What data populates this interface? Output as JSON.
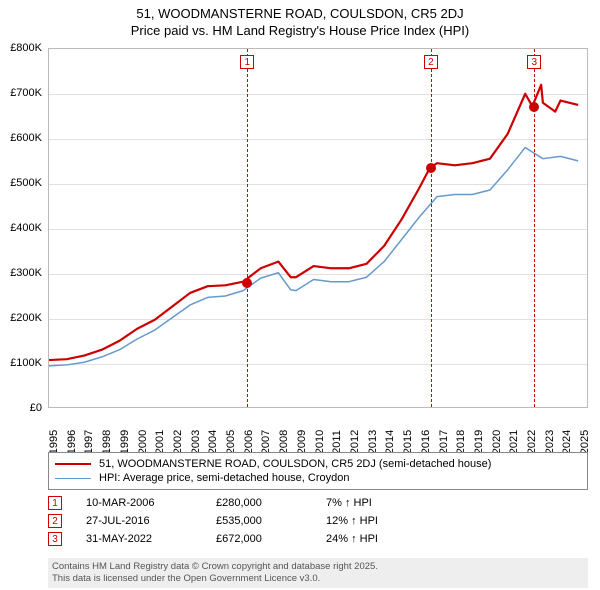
{
  "title": {
    "line1": "51, WOODMANSTERNE ROAD, COULSDON, CR5 2DJ",
    "line2": "Price paid vs. HM Land Registry's House Price Index (HPI)"
  },
  "chart": {
    "type": "line",
    "background_color": "#ffffff",
    "grid_color": "#e0e0e0",
    "border_color": "#bbbbbb",
    "ylim": [
      0,
      800000
    ],
    "ytick_step": 100000,
    "y_labels": [
      "£0",
      "£100K",
      "£200K",
      "£300K",
      "£400K",
      "£500K",
      "£600K",
      "£700K",
      "£800K"
    ],
    "xlim": [
      1995,
      2025.5
    ],
    "x_labels": [
      "1995",
      "1996",
      "1997",
      "1998",
      "1999",
      "2000",
      "2001",
      "2002",
      "2003",
      "2004",
      "2005",
      "2006",
      "2007",
      "2008",
      "2009",
      "2010",
      "2011",
      "2012",
      "2013",
      "2014",
      "2015",
      "2016",
      "2017",
      "2018",
      "2019",
      "2020",
      "2021",
      "2022",
      "2023",
      "2024",
      "2025"
    ],
    "series": [
      {
        "name": "property",
        "label": "51, WOODMANSTERNE ROAD, COULSDON, CR5 2DJ (semi-detached house)",
        "color": "#cc0000",
        "line_width": 2.2,
        "points": [
          [
            1995,
            105000
          ],
          [
            1996,
            107000
          ],
          [
            1997,
            115000
          ],
          [
            1998,
            128000
          ],
          [
            1999,
            148000
          ],
          [
            2000,
            175000
          ],
          [
            2001,
            195000
          ],
          [
            2002,
            225000
          ],
          [
            2003,
            255000
          ],
          [
            2004,
            270000
          ],
          [
            2005,
            272000
          ],
          [
            2006,
            280000
          ],
          [
            2007,
            310000
          ],
          [
            2008,
            325000
          ],
          [
            2008.7,
            290000
          ],
          [
            2009,
            290000
          ],
          [
            2010,
            315000
          ],
          [
            2011,
            310000
          ],
          [
            2012,
            310000
          ],
          [
            2013,
            320000
          ],
          [
            2014,
            360000
          ],
          [
            2015,
            420000
          ],
          [
            2016,
            490000
          ],
          [
            2016.6,
            535000
          ],
          [
            2017,
            545000
          ],
          [
            2018,
            540000
          ],
          [
            2019,
            545000
          ],
          [
            2020,
            555000
          ],
          [
            2021,
            610000
          ],
          [
            2022,
            700000
          ],
          [
            2022.4,
            672000
          ],
          [
            2022.9,
            720000
          ],
          [
            2023,
            680000
          ],
          [
            2023.7,
            660000
          ],
          [
            2024,
            685000
          ],
          [
            2025,
            675000
          ]
        ]
      },
      {
        "name": "hpi",
        "label": "HPI: Average price, semi-detached house, Croydon",
        "color": "#6699cc",
        "line_width": 1.5,
        "points": [
          [
            1995,
            92000
          ],
          [
            1996,
            94000
          ],
          [
            1997,
            100000
          ],
          [
            1998,
            112000
          ],
          [
            1999,
            128000
          ],
          [
            2000,
            152000
          ],
          [
            2001,
            172000
          ],
          [
            2002,
            200000
          ],
          [
            2003,
            228000
          ],
          [
            2004,
            245000
          ],
          [
            2005,
            248000
          ],
          [
            2006,
            260000
          ],
          [
            2007,
            288000
          ],
          [
            2008,
            300000
          ],
          [
            2008.7,
            262000
          ],
          [
            2009,
            260000
          ],
          [
            2010,
            285000
          ],
          [
            2011,
            280000
          ],
          [
            2012,
            280000
          ],
          [
            2013,
            290000
          ],
          [
            2014,
            325000
          ],
          [
            2015,
            375000
          ],
          [
            2016,
            425000
          ],
          [
            2017,
            470000
          ],
          [
            2018,
            475000
          ],
          [
            2019,
            475000
          ],
          [
            2020,
            485000
          ],
          [
            2021,
            530000
          ],
          [
            2022,
            580000
          ],
          [
            2023,
            555000
          ],
          [
            2024,
            560000
          ],
          [
            2025,
            550000
          ]
        ]
      }
    ],
    "markers": [
      {
        "num": "1",
        "x": 2006.2,
        "price": 280000
      },
      {
        "num": "2",
        "x": 2016.57,
        "price": 535000
      },
      {
        "num": "3",
        "x": 2022.41,
        "price": 672000
      }
    ],
    "marker_line_color": "#cc0000",
    "marker_box_border": "#cc0000",
    "marker_box_text_color": "#cc0000",
    "datapoint_color": "#cc0000"
  },
  "legend": {
    "rows": [
      {
        "color": "#cc0000",
        "width": 2.2,
        "label": "51, WOODMANSTERNE ROAD, COULSDON, CR5 2DJ (semi-detached house)"
      },
      {
        "color": "#6699cc",
        "width": 1.5,
        "label": "HPI: Average price, semi-detached house, Croydon"
      }
    ]
  },
  "events": [
    {
      "num": "1",
      "date": "10-MAR-2006",
      "price": "£280,000",
      "diff": "7% ↑ HPI"
    },
    {
      "num": "2",
      "date": "27-JUL-2016",
      "price": "£535,000",
      "diff": "12% ↑ HPI"
    },
    {
      "num": "3",
      "date": "31-MAY-2022",
      "price": "£672,000",
      "diff": "24% ↑ HPI"
    }
  ],
  "footer": {
    "line1": "Contains HM Land Registry data © Crown copyright and database right 2025.",
    "line2": "This data is licensed under the Open Government Licence v3.0."
  }
}
